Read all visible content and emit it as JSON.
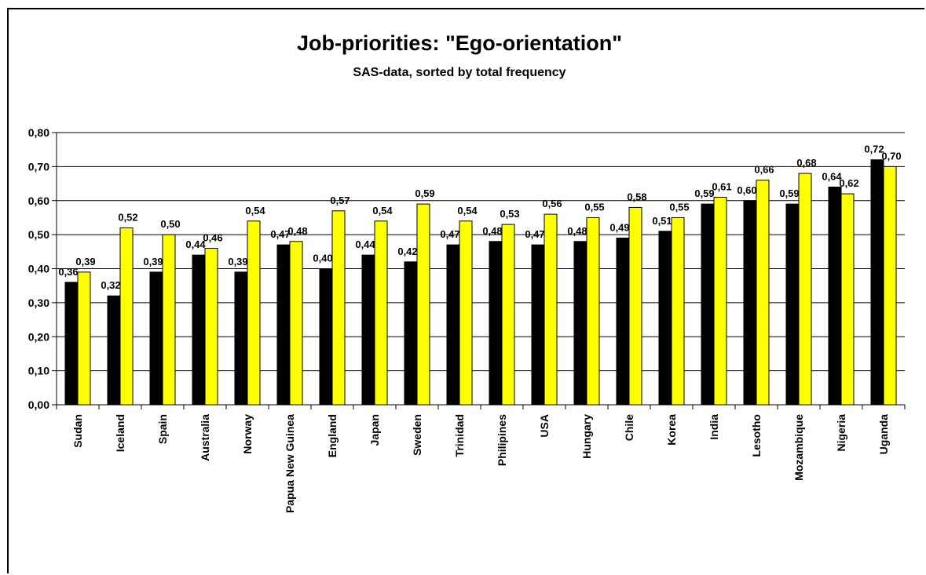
{
  "chart_data": {
    "type": "bar",
    "title": "Job-priorities: \"Ego-orientation\"",
    "subtitle": "SAS-data, sorted by total frequency",
    "xlabel": "",
    "ylabel": "",
    "ylim": [
      0,
      0.8
    ],
    "y_ticks": [
      "0,00",
      "0,10",
      "0,20",
      "0,30",
      "0,40",
      "0,50",
      "0,60",
      "0,70",
      "0,80"
    ],
    "grid": true,
    "legend": "none",
    "categories": [
      "Sudan",
      "Iceland",
      "Spain",
      "Australia",
      "Norway",
      "Papua New Guinea",
      "England",
      "Japan",
      "Sweden",
      "Trinidad",
      "Philipines",
      "USA",
      "Hungary",
      "Chile",
      "Korea",
      "India",
      "Lesotho",
      "Mozambique",
      "Nigeria",
      "Uganda"
    ],
    "series": [
      {
        "color": "#000000",
        "values": [
          0.36,
          0.32,
          0.39,
          0.44,
          0.39,
          0.47,
          0.4,
          0.44,
          0.42,
          0.47,
          0.48,
          0.47,
          0.48,
          0.49,
          0.51,
          0.59,
          0.6,
          0.59,
          0.64,
          0.72
        ],
        "labels": [
          "0,36",
          "0,32",
          "0,39",
          "0,44",
          "0,39",
          "0,47",
          "0,40",
          "0,44",
          "0,42",
          "0,47",
          "0,48",
          "0,47",
          "0,48",
          "0,49",
          "0,51",
          "0,59",
          "0,60",
          "0,59",
          "0,64",
          "0,72"
        ]
      },
      {
        "color": "#ffff00",
        "values": [
          0.39,
          0.52,
          0.5,
          0.46,
          0.54,
          0.48,
          0.57,
          0.54,
          0.59,
          0.54,
          0.53,
          0.56,
          0.55,
          0.58,
          0.55,
          0.61,
          0.66,
          0.68,
          0.62,
          0.7
        ],
        "labels": [
          "0,39",
          "0,52",
          "0,50",
          "0,46",
          "0,54",
          "0,48",
          "0,57",
          "0,54",
          "0,59",
          "0,54",
          "0,53",
          "0,56",
          "0,55",
          "0,58",
          "0,55",
          "0,61",
          "0,66",
          "0,68",
          "0,62",
          "0,70"
        ]
      }
    ]
  }
}
